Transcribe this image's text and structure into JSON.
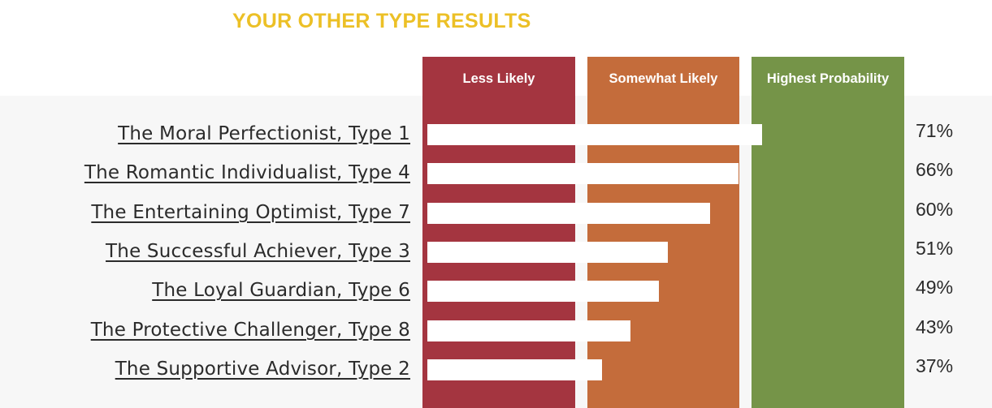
{
  "title": "YOUR OTHER TYPE RESULTS",
  "colors": {
    "title": "#ecc026",
    "less_likely": "#a43540",
    "somewhat_likely": "#c46c3b",
    "highest_probability": "#759448",
    "bar": "#ffffff",
    "text": "#2b2b2b"
  },
  "columns": [
    {
      "label": "Less Likely",
      "color": "#a43540"
    },
    {
      "label": "Somewhat Likely",
      "color": "#c46c3b"
    },
    {
      "label": "Highest Probability",
      "color": "#759448"
    }
  ],
  "chart_data": {
    "type": "bar",
    "orientation": "horizontal",
    "title": "YOUR OTHER TYPE RESULTS",
    "categories": [
      "The Moral Perfectionist, Type 1",
      "The Romantic Individualist, Type 4",
      "The Entertaining Optimist, Type 7",
      "The Successful Achiever, Type 3",
      "The Loyal Guardian, Type 6",
      "The Protective Challenger, Type 8",
      "The Supportive Advisor, Type 2"
    ],
    "values": [
      71,
      66,
      60,
      51,
      49,
      43,
      37
    ],
    "value_labels": [
      "71%",
      "66%",
      "60%",
      "51%",
      "49%",
      "43%",
      "37%"
    ],
    "bands": [
      "Less Likely",
      "Somewhat Likely",
      "Highest Probability"
    ],
    "xlim": [
      0,
      100
    ],
    "grid": false
  }
}
